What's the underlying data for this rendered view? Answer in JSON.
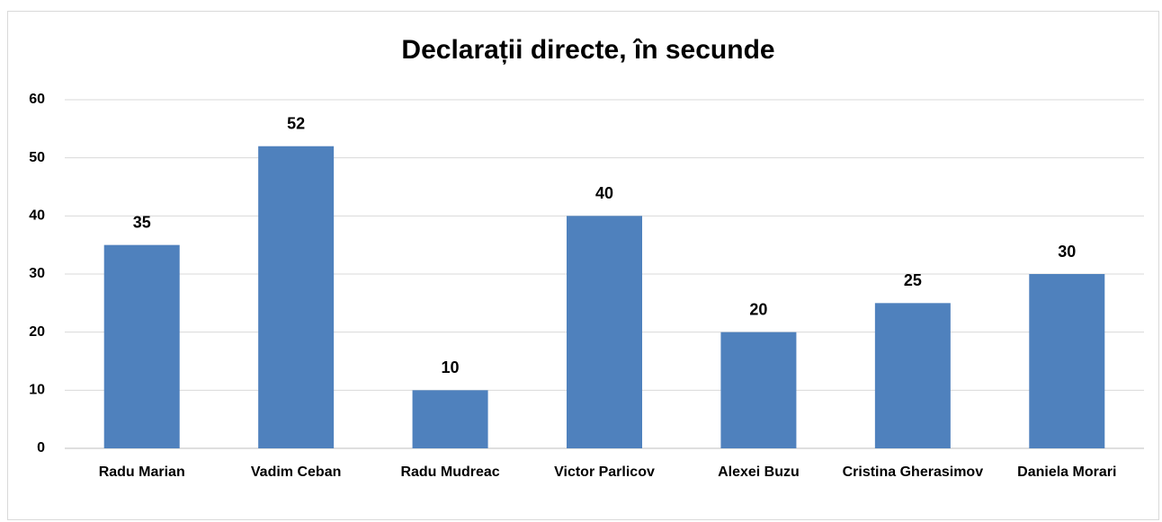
{
  "chart_data": {
    "type": "bar",
    "title": "Declarații directe, în secunde",
    "categories": [
      "Radu Marian",
      "Vadim Ceban",
      "Radu Mudreac",
      "Victor Parlicov",
      "Alexei Buzu",
      "Cristina Gherasimov",
      "Daniela Morari"
    ],
    "values": [
      35,
      52,
      10,
      40,
      20,
      25,
      30
    ],
    "color": "#4f81bd",
    "ylim": [
      0,
      60
    ],
    "yticks": [
      0,
      10,
      20,
      30,
      40,
      50,
      60
    ],
    "grid": true
  }
}
